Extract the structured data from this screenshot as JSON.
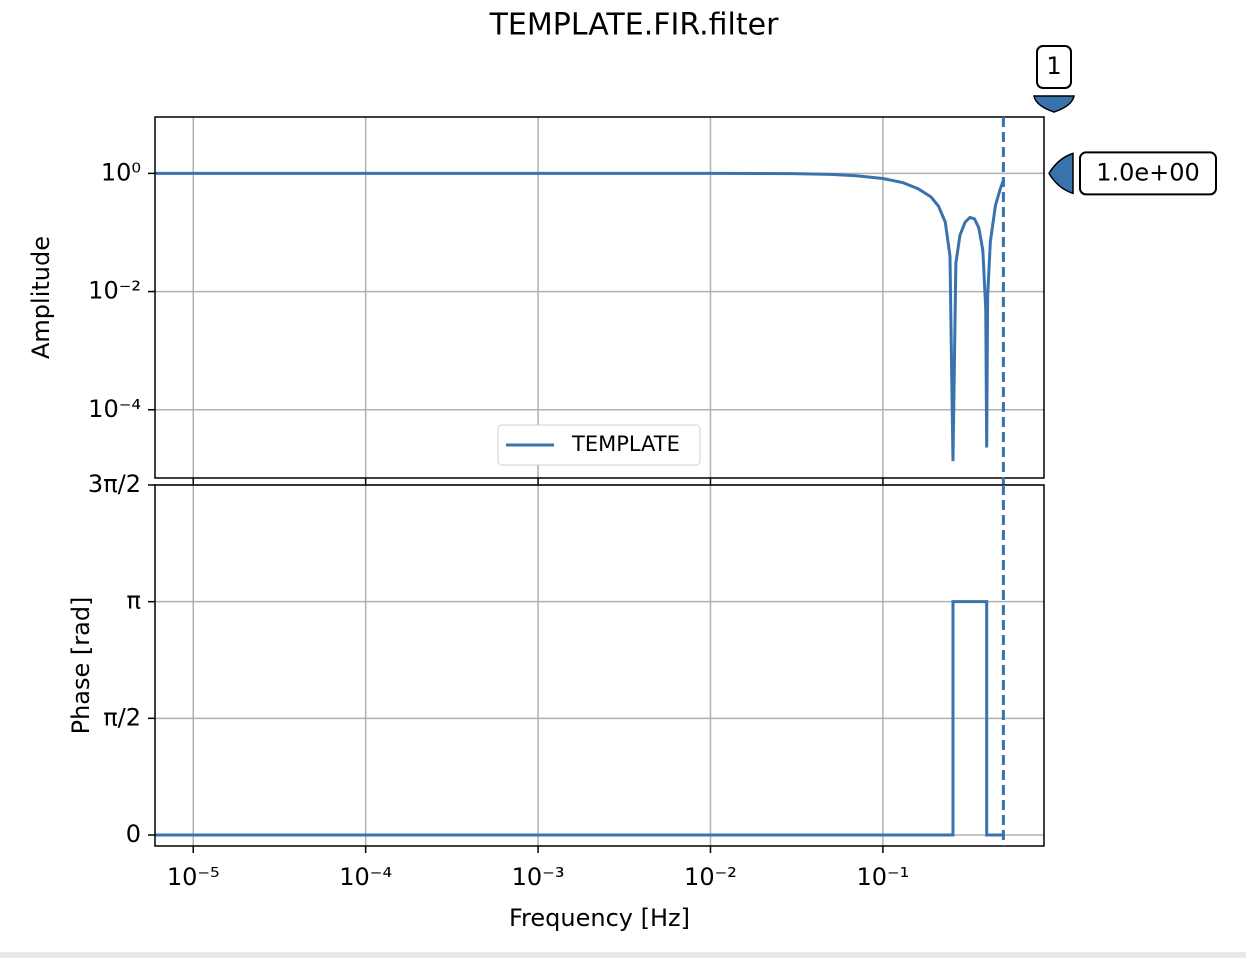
{
  "chart_data": [
    {
      "type": "line",
      "title": "TEMPLATE.FIR.filter",
      "ylabel": "Amplitude",
      "xscale": "log",
      "yscale": "log",
      "grid": true,
      "legend": "lower center",
      "xlim": [
        6e-06,
        0.86
      ],
      "ylim": [
        7e-06,
        9
      ],
      "xticks": [
        {
          "value": 1e-05,
          "label": "10⁻⁵"
        },
        {
          "value": 0.0001,
          "label": "10⁻⁴"
        },
        {
          "value": 0.001,
          "label": "10⁻³"
        },
        {
          "value": 0.01,
          "label": "10⁻²"
        },
        {
          "value": 0.1,
          "label": "10⁻¹"
        }
      ],
      "yticks": [
        {
          "value": 1,
          "label": "10⁰"
        },
        {
          "value": 0.01,
          "label": "10⁻²"
        },
        {
          "value": 0.0001,
          "label": "10⁻⁴"
        }
      ],
      "x": [
        6e-06,
        1e-05,
        0.0001,
        0.001,
        0.01,
        0.03,
        0.05,
        0.07,
        0.1,
        0.13,
        0.16,
        0.19,
        0.21,
        0.23,
        0.245,
        0.255,
        0.265,
        0.28,
        0.3,
        0.32,
        0.34,
        0.36,
        0.38,
        0.395,
        0.4,
        0.405,
        0.42,
        0.45,
        0.48,
        0.5
      ],
      "series": [
        {
          "name": "TEMPLATE",
          "color": "#3a72ad",
          "values": [
            1,
            1,
            1,
            1,
            1,
            0.99,
            0.96,
            0.91,
            0.82,
            0.7,
            0.55,
            0.4,
            0.28,
            0.15,
            0.04,
            1.35e-05,
            0.03,
            0.09,
            0.15,
            0.18,
            0.17,
            0.12,
            0.05,
            0.005,
            2.3e-05,
            0.008,
            0.07,
            0.29,
            0.55,
            0.76
          ]
        }
      ],
      "cursor": {
        "x": 0.5,
        "label": "1",
        "y": 1,
        "y_label": "1.0e+00"
      }
    },
    {
      "type": "line",
      "ylabel": "Phase [rad]",
      "xlabel": "Frequency [Hz]",
      "xscale": "log",
      "grid": true,
      "xlim": [
        6e-06,
        0.86
      ],
      "ylim": [
        -0.148,
        4.7124
      ],
      "xticks": [
        {
          "value": 1e-05,
          "label": "10⁻⁵"
        },
        {
          "value": 0.0001,
          "label": "10⁻⁴"
        },
        {
          "value": 0.001,
          "label": "10⁻³"
        },
        {
          "value": 0.01,
          "label": "10⁻²"
        },
        {
          "value": 0.1,
          "label": "10⁻¹"
        }
      ],
      "yticks": [
        0,
        {
          "value": 1.5708,
          "label": "π/2"
        },
        {
          "value": 3.1416,
          "label": "π"
        },
        {
          "value": 4.7124,
          "label": "3π/2"
        }
      ],
      "x": [
        6e-06,
        0.255,
        0.255,
        0.4,
        0.4,
        0.5
      ],
      "series": [
        {
          "color": "#3a72ad",
          "values": [
            0,
            0,
            3.1416,
            3.1416,
            0,
            0
          ]
        }
      ],
      "cursor": {
        "x": 0.5
      }
    }
  ]
}
